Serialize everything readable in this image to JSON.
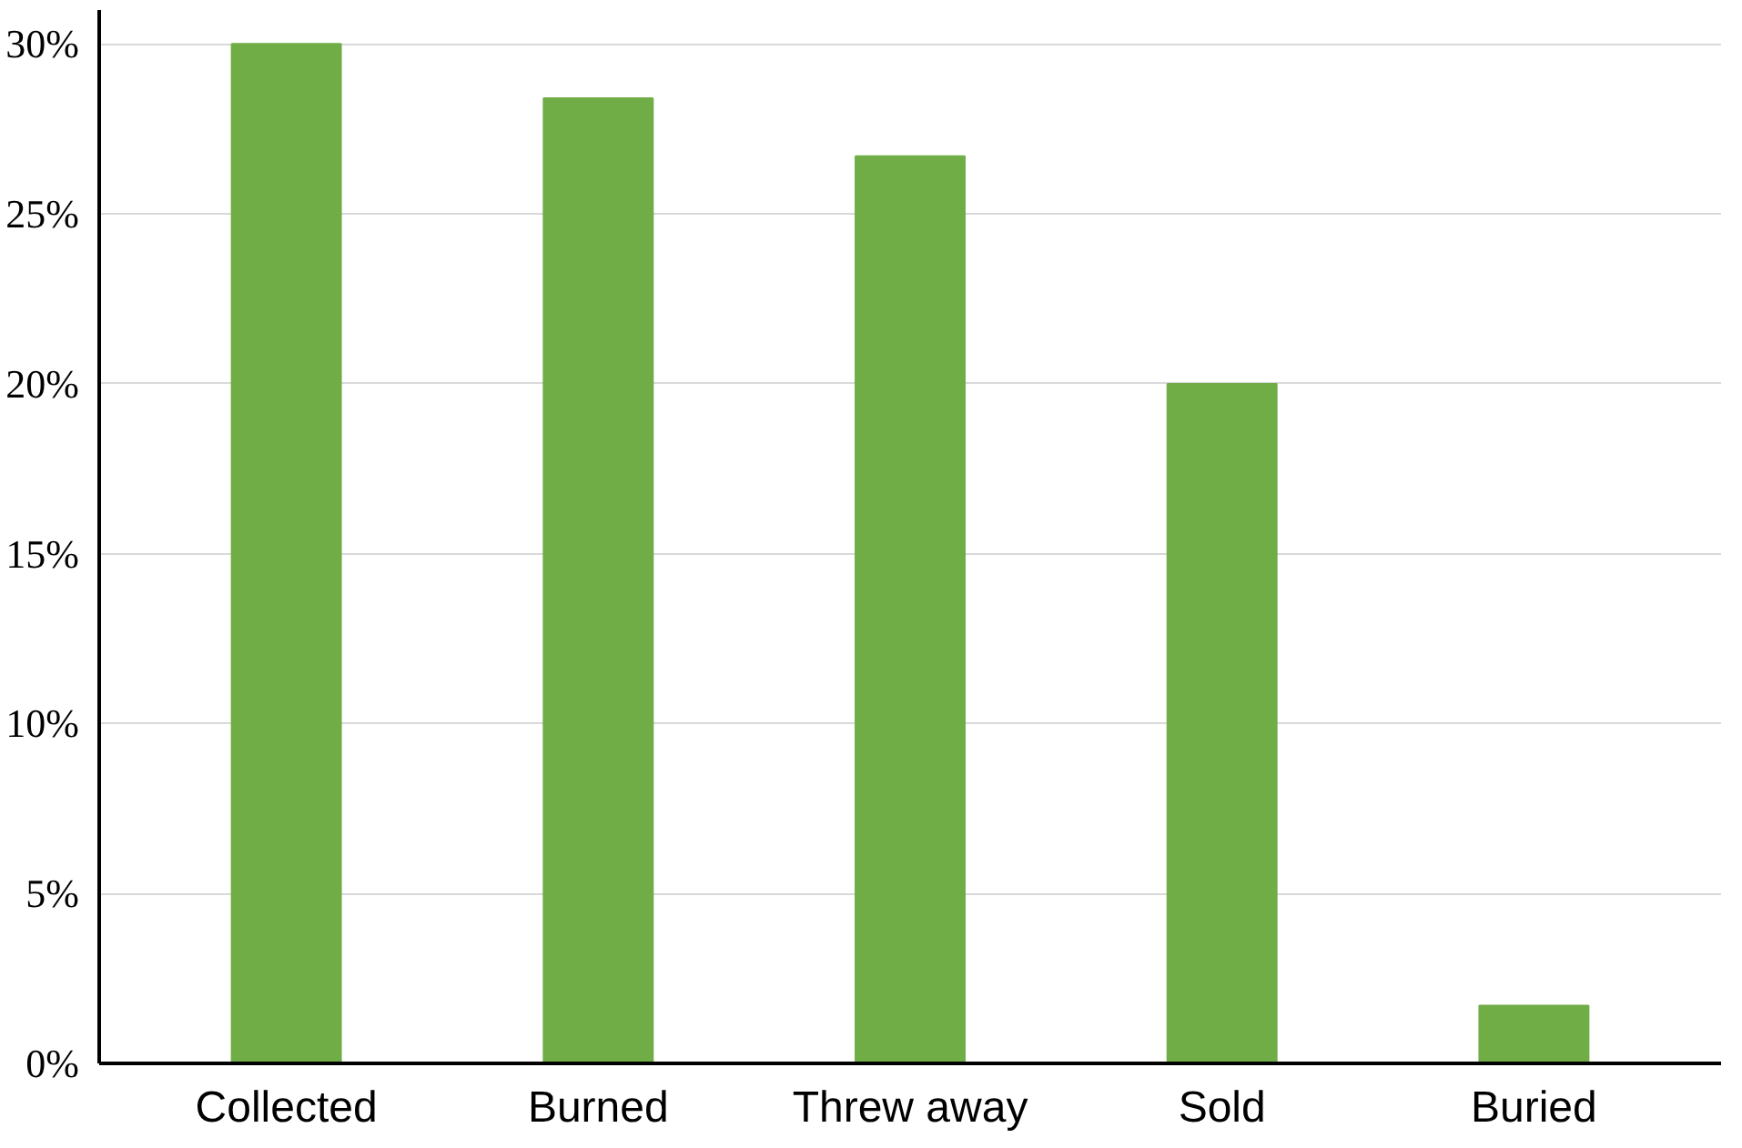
{
  "chart_data": {
    "type": "bar",
    "categories": [
      "Collected",
      "Burned",
      "Threw away",
      "Sold",
      "Buried"
    ],
    "values": [
      30,
      28.4,
      26.7,
      20,
      1.7
    ],
    "color": "#70ad47",
    "ylim": [
      0,
      31
    ],
    "yticks": [
      {
        "value": 0,
        "label": "0%"
      },
      {
        "value": 5,
        "label": "5%"
      },
      {
        "value": 10,
        "label": "10%"
      },
      {
        "value": 15,
        "label": "15%"
      },
      {
        "value": 20,
        "label": "20%"
      },
      {
        "value": 25,
        "label": "25%"
      },
      {
        "value": 30,
        "label": "30%"
      }
    ],
    "grid": "y"
  }
}
